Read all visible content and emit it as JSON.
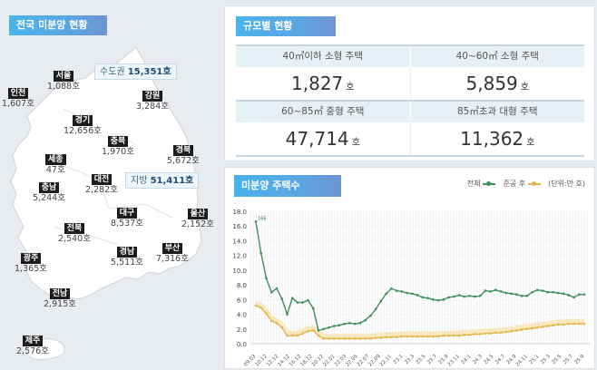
{
  "map_panel": {
    "title": "전국 미분양 현황",
    "capital_area": {
      "label": "수도권",
      "value": "15,351호"
    },
    "provinces_area": {
      "label": "지방",
      "value": "51,411호"
    },
    "regions": [
      {
        "name": "서울",
        "value": "1,088호"
      },
      {
        "name": "인천",
        "value": "1,607호"
      },
      {
        "name": "강원",
        "value": "3,284호"
      },
      {
        "name": "경기",
        "value": "12,656호"
      },
      {
        "name": "충북",
        "value": "1,970호"
      },
      {
        "name": "경북",
        "value": "5,672호"
      },
      {
        "name": "세종",
        "value": "47호"
      },
      {
        "name": "충남",
        "value": "5,244호"
      },
      {
        "name": "대전",
        "value": "2,282호"
      },
      {
        "name": "대구",
        "value": "8,537호"
      },
      {
        "name": "울산",
        "value": "2,152호"
      },
      {
        "name": "전북",
        "value": "2,540호"
      },
      {
        "name": "경남",
        "value": "5,511호"
      },
      {
        "name": "부산",
        "value": "7,316호"
      },
      {
        "name": "광주",
        "value": "1,365호"
      },
      {
        "name": "전남",
        "value": "2,915호"
      },
      {
        "name": "제주",
        "value": "2,576호"
      }
    ]
  },
  "size_panel": {
    "title": "규모별 현황",
    "unit": "호",
    "cells": [
      {
        "label": "40㎡이하 소형 주택",
        "value": "1,827"
      },
      {
        "label": "40~60㎡ 소형 주택",
        "value": "5,859"
      },
      {
        "label": "60~85㎡ 중형 주택",
        "value": "47,714"
      },
      {
        "label": "85㎡초과 대형 주택",
        "value": "11,362"
      }
    ]
  },
  "chart_panel": {
    "title": "미분양 주택수",
    "legend_total": "전체",
    "legend_completed": "준공 후",
    "unit_note": "(단위:만 호)",
    "colors": {
      "total": "#3f8f5a",
      "completed": "#e3b54a"
    }
  },
  "chart_data": {
    "type": "line",
    "title": "미분양 주택수",
    "xlabel": "",
    "ylabel": "",
    "unit": "만 호",
    "ylim": [
      0,
      18
    ],
    "yticks": [
      "0.0",
      "2.0",
      "4.0",
      "6.0",
      "8.0",
      "10.0",
      "12.0",
      "14.0",
      "16.0",
      "18.0"
    ],
    "x_tick_labels": [
      "09.03",
      "10.12",
      "12.12",
      "14.12",
      "16.12",
      "18.12",
      "20.12",
      "22.01",
      "22.03",
      "22.05",
      "22.07",
      "22.09",
      "22.11",
      "23.1",
      "23.3",
      "23.5",
      "23.7",
      "23.9",
      "23.11",
      "24.1",
      "24.3",
      "24.5",
      "24.7",
      "24.9",
      "24.11",
      "25.1",
      "25.3",
      "25.5",
      "25.7",
      "25.9"
    ],
    "grid": true,
    "legend_position": "top-right",
    "series": [
      {
        "name": "전체",
        "values": [
          16.6,
          12.3,
          8.9,
          7.0,
          7.5,
          6.1,
          4.0,
          6.2,
          5.6,
          5.6,
          5.9,
          4.8,
          1.8,
          2.0,
          2.2,
          2.4,
          2.5,
          2.7,
          2.8,
          2.7,
          2.8,
          3.2,
          3.8,
          4.7,
          5.8,
          6.8,
          7.5,
          7.2,
          7.1,
          6.9,
          6.8,
          6.6,
          6.3,
          6.2,
          6.0,
          5.9,
          6.0,
          6.3,
          6.4,
          6.6,
          6.4,
          6.5,
          6.4,
          6.5,
          7.2,
          7.1,
          7.3,
          7.1,
          6.9,
          6.8,
          6.7,
          6.5,
          6.5,
          7.0,
          7.3,
          7.2,
          7.0,
          7.0,
          6.9,
          6.8,
          6.6,
          6.3,
          6.7,
          6.7
        ]
      },
      {
        "name": "준공 후",
        "values": [
          5.2,
          4.9,
          4.1,
          3.1,
          2.8,
          2.2,
          1.1,
          1.1,
          1.1,
          1.4,
          1.7,
          1.8,
          1.1,
          0.7,
          0.7,
          0.7,
          0.7,
          0.7,
          0.7,
          0.7,
          0.7,
          0.7,
          0.7,
          0.8,
          0.8,
          0.9,
          0.9,
          0.9,
          1.0,
          1.0,
          1.0,
          1.0,
          1.0,
          1.0,
          1.0,
          1.0,
          1.1,
          1.1,
          1.1,
          1.1,
          1.2,
          1.2,
          1.3,
          1.3,
          1.4,
          1.4,
          1.5,
          1.5,
          1.6,
          1.7,
          1.8,
          1.9,
          2.0,
          2.1,
          2.2,
          2.3,
          2.4,
          2.5,
          2.6,
          2.6,
          2.7,
          2.7,
          2.7,
          2.7
        ]
      }
    ]
  }
}
